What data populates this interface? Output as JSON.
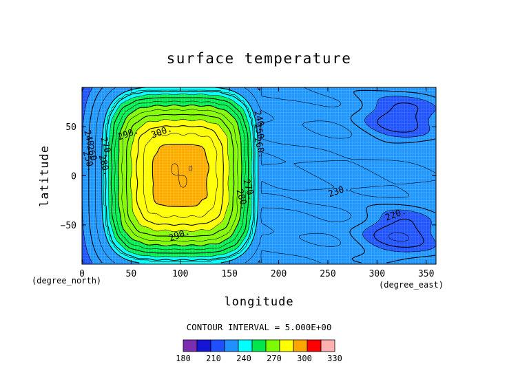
{
  "chart_data": {
    "type": "heatmap",
    "title": "surface temperature",
    "xlabel": "longitude",
    "ylabel": "latitude",
    "x_unit": "(degree_east)",
    "y_unit": "(degree_north)",
    "xlim": [
      0,
      360
    ],
    "ylim": [
      -90,
      90
    ],
    "x_ticks": [
      0,
      50,
      100,
      150,
      200,
      250,
      300,
      350
    ],
    "y_ticks": [
      -50,
      0,
      50
    ],
    "x_tick_labels": [
      "0",
      "50",
      "100",
      "150",
      "200",
      "250",
      "300",
      "350"
    ],
    "y_tick_labels": [
      "−50",
      "0",
      "50"
    ],
    "contour_interval_text": "CONTOUR INTERVAL = 5.000E+00",
    "grid": false,
    "legend_position": "bottom colorbar",
    "colorbar": {
      "min": 180,
      "max": 330,
      "step": 15,
      "tick_values": [
        180,
        210,
        240,
        270,
        300,
        330
      ],
      "tick_labels": [
        "180",
        "210",
        "240",
        "270",
        "300",
        "330"
      ],
      "colors": [
        "#7b2fb0",
        "#1414d4",
        "#1e50ff",
        "#1e90ff",
        "#00ffff",
        "#00e64d",
        "#7cfc00",
        "#ffff00",
        "#ffa500",
        "#ff0000",
        "#ffb0b0"
      ]
    },
    "warm_patch": {
      "center_lon": 100,
      "center_lat": 0,
      "lon_extent": [
        0,
        180
      ],
      "peak": 305
    },
    "background_level": 235,
    "cold_cells": [
      {
        "center_lon": 325,
        "center_lat": 60,
        "min": 218
      },
      {
        "center_lon": 325,
        "center_lat": -60,
        "min": 217
      }
    ],
    "contour_labels": [
      {
        "text": "300.",
        "lon": 82,
        "lat": 42
      },
      {
        "text": "290.",
        "lon": 48,
        "lat": 40
      },
      {
        "text": "280.",
        "lon": 20,
        "lat": 10
      },
      {
        "text": "270.",
        "lon": 22,
        "lat": 28
      },
      {
        "text": "260.",
        "lon": 8,
        "lat": 20
      },
      {
        "text": "250.",
        "lon": 4,
        "lat": 14
      },
      {
        "text": "240.",
        "lon": 5,
        "lat": 35
      },
      {
        "text": "290.",
        "lon": 100,
        "lat": -63
      },
      {
        "text": "280.",
        "lon": 160,
        "lat": -25
      },
      {
        "text": "270.",
        "lon": 167,
        "lat": -15
      },
      {
        "text": "240.",
        "lon": 178,
        "lat": 55
      },
      {
        "text": "250.",
        "lon": 178,
        "lat": 42
      },
      {
        "text": "260.",
        "lon": 178,
        "lat": 28
      },
      {
        "text": "230.",
        "lon": 262,
        "lat": -18
      },
      {
        "text": "220.",
        "lon": 320,
        "lat": -42
      }
    ]
  }
}
